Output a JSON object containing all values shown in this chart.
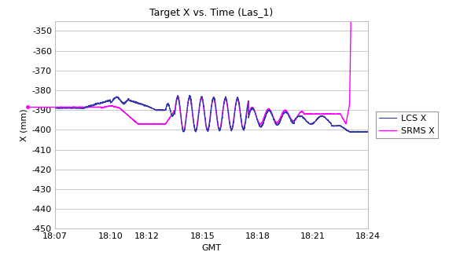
{
  "title": "Target X vs. Time (Las_1)",
  "xlabel": "GMT",
  "ylabel": "X (mm)",
  "ylim": [
    -450,
    -345
  ],
  "yticks": [
    -450,
    -440,
    -430,
    -420,
    -410,
    -400,
    -390,
    -380,
    -370,
    -360,
    -350
  ],
  "xlim_minutes": [
    0,
    17
  ],
  "xtick_labels": [
    "18:07",
    "18:10",
    "18:12",
    "18:15",
    "18:18",
    "18:21",
    "18:24"
  ],
  "xtick_positions": [
    0,
    3,
    5,
    8,
    11,
    14,
    17
  ],
  "lcs_color": "#3333AA",
  "srms_color": "#FF00FF",
  "background_color": "#FFFFFF",
  "plot_bg_color": "#FFFFFF",
  "legend_labels": [
    "LCS X",
    "SRMS X"
  ],
  "grid_color": "#C0C0C0",
  "title_fontsize": 9,
  "axis_fontsize": 8,
  "tick_fontsize": 8
}
